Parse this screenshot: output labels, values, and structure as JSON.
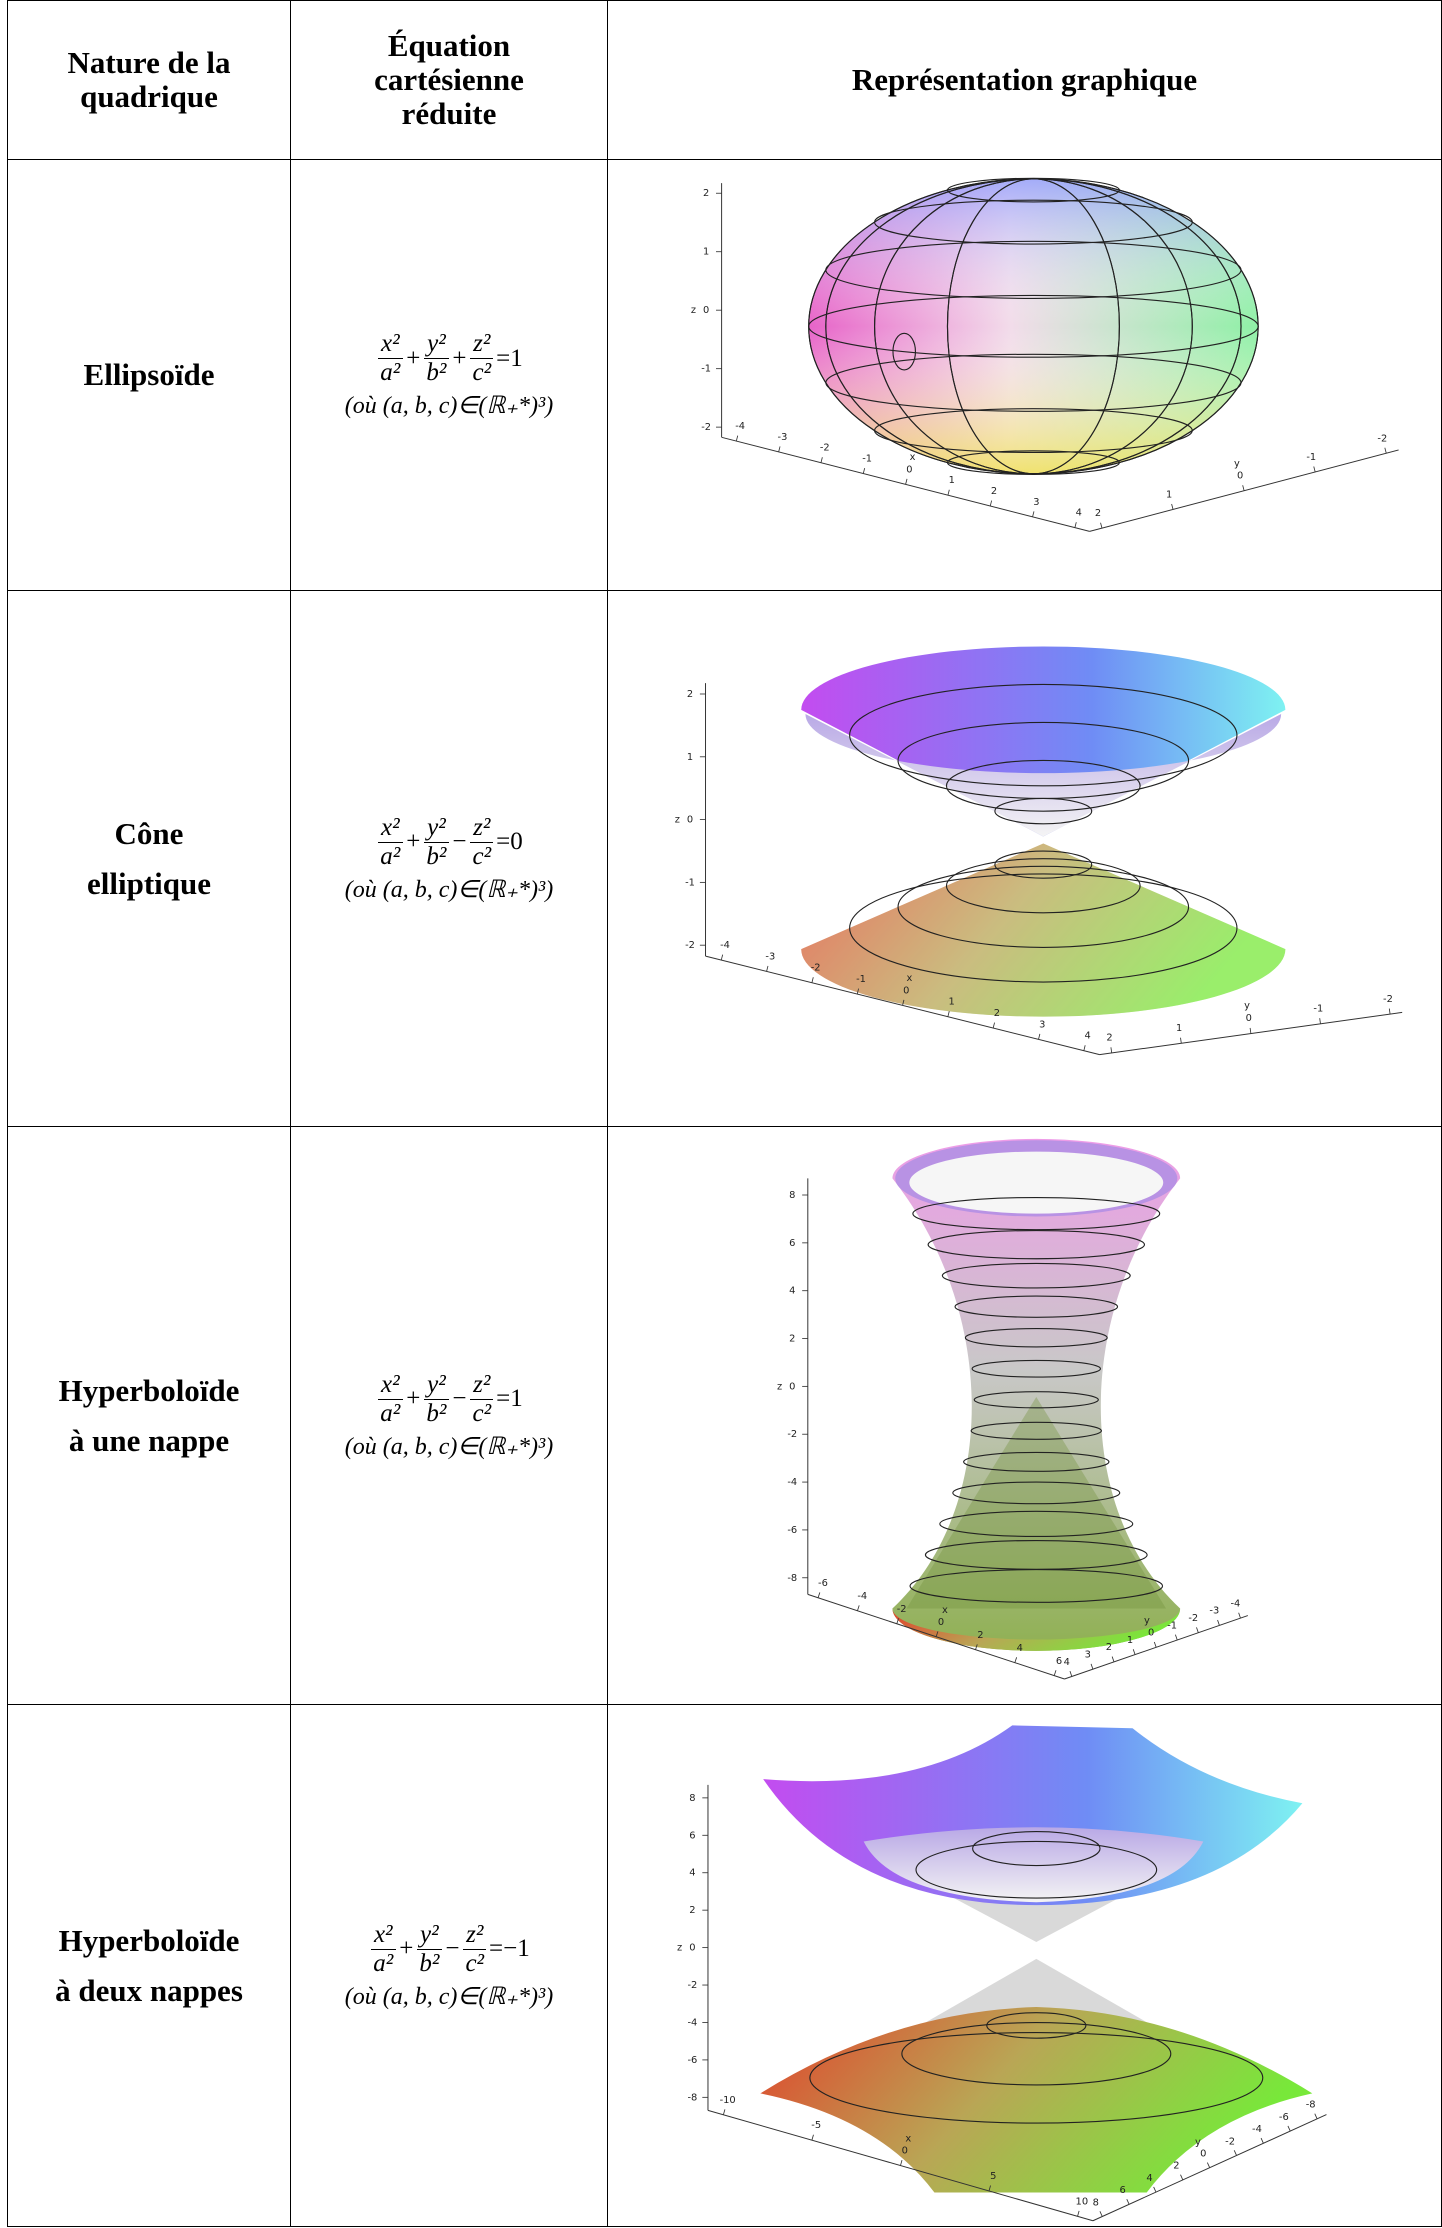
{
  "table": {
    "header": [
      [
        "Nature de la",
        "quadrique"
      ],
      [
        "Équation",
        "cartésienne",
        "réduite"
      ],
      [
        "Représentation graphique"
      ]
    ],
    "rows": [
      {
        "name": [
          "Ellipsoïde"
        ],
        "equation": {
          "terms": [
            {
              "num": "x²",
              "den": "a²"
            },
            {
              "num": "y²",
              "den": "b²"
            },
            {
              "num": "z²",
              "den": "c²"
            }
          ],
          "ops": [
            "+",
            "+"
          ],
          "rhs": "=1"
        },
        "condition": "(où (a, b, c)∈(ℝ₊*)³)",
        "plot": {
          "axis_labels": {
            "x": "x",
            "y": "y",
            "z": "z"
          },
          "z_ticks": [
            "2",
            "1",
            "0",
            "-1",
            "-2"
          ],
          "x_ticks": [
            "-4",
            "-3",
            "-2",
            "-1",
            "0",
            "1",
            "2",
            "3",
            "4"
          ],
          "y_ticks": [
            "2",
            "1",
            "0",
            "-1",
            "-2"
          ]
        }
      },
      {
        "name": [
          "Cône",
          "elliptique"
        ],
        "equation": {
          "terms": [
            {
              "num": "x²",
              "den": "a²"
            },
            {
              "num": "y²",
              "den": "b²"
            },
            {
              "num": "z²",
              "den": "c²"
            }
          ],
          "ops": [
            "+",
            "−"
          ],
          "rhs": "=0"
        },
        "condition": "(où (a, b, c)∈(ℝ₊*)³)",
        "plot": {
          "axis_labels": {
            "x": "x",
            "y": "y",
            "z": "z"
          },
          "z_ticks": [
            "2",
            "1",
            "0",
            "-1",
            "-2"
          ],
          "x_ticks": [
            "-4",
            "-3",
            "-2",
            "-1",
            "0",
            "1",
            "2",
            "3",
            "4"
          ],
          "y_ticks": [
            "2",
            "1",
            "0",
            "-1",
            "-2"
          ]
        }
      },
      {
        "name": [
          "Hyperboloïde",
          "à une nappe"
        ],
        "equation": {
          "terms": [
            {
              "num": "x²",
              "den": "a²"
            },
            {
              "num": "y²",
              "den": "b²"
            },
            {
              "num": "z²",
              "den": "c²"
            }
          ],
          "ops": [
            "+",
            "−"
          ],
          "rhs": "=1"
        },
        "condition": "(où (a, b, c)∈(ℝ₊*)³)",
        "plot": {
          "axis_labels": {
            "x": "x",
            "y": "y",
            "z": "z"
          },
          "z_ticks": [
            "8",
            "6",
            "4",
            "2",
            "0",
            "-2",
            "-4",
            "-6",
            "-8"
          ],
          "x_ticks": [
            "-6",
            "-4",
            "-2",
            "0",
            "2",
            "4",
            "6"
          ],
          "y_ticks": [
            "4",
            "3",
            "2",
            "1",
            "0",
            "-1",
            "-2",
            "-3",
            "-4"
          ]
        }
      },
      {
        "name": [
          "Hyperboloïde",
          "à deux nappes"
        ],
        "equation": {
          "terms": [
            {
              "num": "x²",
              "den": "a²"
            },
            {
              "num": "y²",
              "den": "b²"
            },
            {
              "num": "z²",
              "den": "c²"
            }
          ],
          "ops": [
            "+",
            "−"
          ],
          "rhs": "=−1"
        },
        "condition": "(où (a, b, c)∈(ℝ₊*)³)",
        "plot": {
          "axis_labels": {
            "x": "x",
            "y": "y",
            "z": "z"
          },
          "z_ticks": [
            "8",
            "6",
            "4",
            "2",
            "0",
            "-2",
            "-4",
            "-6",
            "-8"
          ],
          "x_ticks": [
            "-10",
            "-5",
            "0",
            "5",
            "10"
          ],
          "y_ticks": [
            "8",
            "6",
            "4",
            "2",
            "0",
            "-2",
            "-4",
            "-6",
            "-8"
          ]
        }
      }
    ]
  }
}
